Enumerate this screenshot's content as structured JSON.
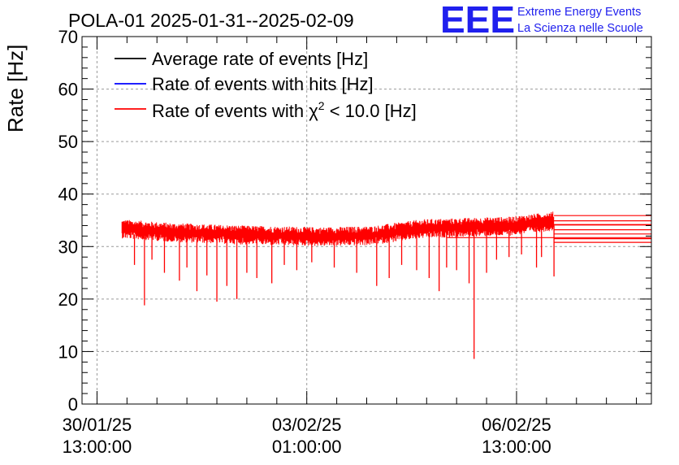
{
  "header": {
    "title": "POLA-01 2025-01-31--2025-02-09",
    "logo_text": "EEE",
    "logo_line1": "Extreme Energy Events",
    "logo_line2": "La Scienza nelle Scuole"
  },
  "colors": {
    "average": "#000000",
    "hits": "#0000ff",
    "chi2": "#ff0000",
    "logo": "#2020ee",
    "grid": "#9a9a9a"
  },
  "chart_data": {
    "type": "line",
    "title": "POLA-01 2025-01-31--2025-02-09",
    "xlabel": "",
    "ylabel": "Rate [Hz]",
    "ylim": [
      0,
      70
    ],
    "yticks": [
      0,
      10,
      20,
      30,
      40,
      50,
      60,
      70
    ],
    "xlim_hours": [
      -6,
      222
    ],
    "xticks": [
      {
        "hours": 0,
        "date": "30/01/25",
        "time": "13:00:00"
      },
      {
        "hours": 84,
        "date": "03/02/25",
        "time": "01:00:00"
      },
      {
        "hours": 168,
        "date": "06/02/25",
        "time": "13:00:00"
      }
    ],
    "x_start_hours": 10,
    "x_end_hours": 183,
    "trend": [
      {
        "hours": 10,
        "rate": 33.5
      },
      {
        "hours": 30,
        "rate": 32.8
      },
      {
        "hours": 60,
        "rate": 32.3
      },
      {
        "hours": 90,
        "rate": 32.0
      },
      {
        "hours": 110,
        "rate": 32.2
      },
      {
        "hours": 130,
        "rate": 33.5
      },
      {
        "hours": 150,
        "rate": 33.8
      },
      {
        "hours": 165,
        "rate": 34.0
      },
      {
        "hours": 183,
        "rate": 35.0
      }
    ],
    "noise_amplitude": 1.3,
    "dips": [
      {
        "hours": 15,
        "rate": 26.5
      },
      {
        "hours": 19,
        "rate": 18.8
      },
      {
        "hours": 22,
        "rate": 27.5
      },
      {
        "hours": 27,
        "rate": 25.0
      },
      {
        "hours": 33,
        "rate": 23.5
      },
      {
        "hours": 36,
        "rate": 26.0
      },
      {
        "hours": 40,
        "rate": 21.5
      },
      {
        "hours": 44,
        "rate": 24.5
      },
      {
        "hours": 48,
        "rate": 19.5
      },
      {
        "hours": 52,
        "rate": 22.5
      },
      {
        "hours": 56,
        "rate": 20.0
      },
      {
        "hours": 60,
        "rate": 25.0
      },
      {
        "hours": 64,
        "rate": 24.0
      },
      {
        "hours": 70,
        "rate": 23.0
      },
      {
        "hours": 75,
        "rate": 26.5
      },
      {
        "hours": 80,
        "rate": 25.5
      },
      {
        "hours": 86,
        "rate": 27.0
      },
      {
        "hours": 95,
        "rate": 26.0
      },
      {
        "hours": 104,
        "rate": 25.0
      },
      {
        "hours": 112,
        "rate": 22.5
      },
      {
        "hours": 117,
        "rate": 24.0
      },
      {
        "hours": 122,
        "rate": 26.5
      },
      {
        "hours": 128,
        "rate": 25.5
      },
      {
        "hours": 133,
        "rate": 24.0
      },
      {
        "hours": 137,
        "rate": 21.5
      },
      {
        "hours": 140,
        "rate": 26.0
      },
      {
        "hours": 144,
        "rate": 25.5
      },
      {
        "hours": 149,
        "rate": 23.0
      },
      {
        "hours": 151,
        "rate": 8.6
      },
      {
        "hours": 156,
        "rate": 25.0
      },
      {
        "hours": 160,
        "rate": 27.5
      },
      {
        "hours": 165,
        "rate": 28.0
      },
      {
        "hours": 170,
        "rate": 28.5
      },
      {
        "hours": 176,
        "rate": 26.0
      },
      {
        "hours": 178,
        "rate": 28.0
      },
      {
        "hours": 183,
        "rate": 24.3
      }
    ],
    "tail_lines": [
      {
        "from_hours": 183,
        "rate": 35.9
      },
      {
        "from_hours": 183,
        "rate": 34.9
      },
      {
        "from_hours": 183,
        "rate": 34.2
      },
      {
        "from_hours": 183,
        "rate": 33.2
      },
      {
        "from_hours": 183,
        "rate": 32.4
      },
      {
        "from_hours": 183,
        "rate": 31.5
      },
      {
        "from_hours": 183,
        "rate": 30.8
      },
      {
        "from_hours": 130,
        "rate": 34.1
      },
      {
        "from_hours": 140,
        "rate": 31.7
      }
    ],
    "legend": [
      {
        "label": "Average rate of events [Hz]",
        "series": "average"
      },
      {
        "label": "Rate of events with hits [Hz]",
        "series": "hits"
      },
      {
        "label_prefix": "Rate of events with ",
        "label_chi": "χ",
        "label_sup": "2",
        "label_suffix": " < 10.0 [Hz]",
        "series": "chi2"
      }
    ],
    "legend_position": "top-left",
    "grid": true
  }
}
